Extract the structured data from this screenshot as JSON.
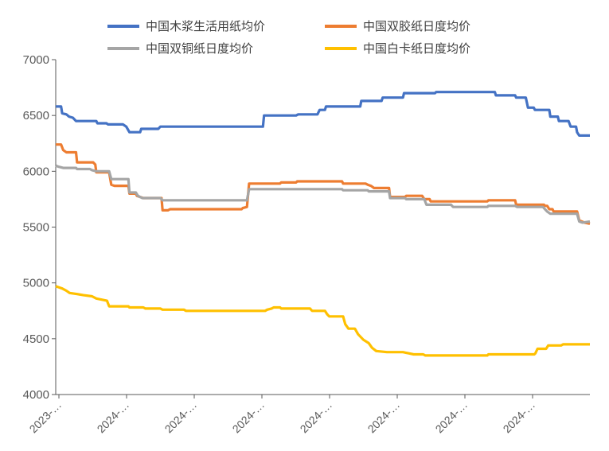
{
  "chart_data": {
    "type": "line",
    "title": "",
    "xlabel": "",
    "ylabel": "",
    "ylim": [
      4000,
      7000
    ],
    "yticks": [
      4000,
      4500,
      5000,
      5500,
      6000,
      6500,
      7000
    ],
    "xtick_labels": [
      "2023-…",
      "2024-…",
      "2024-…",
      "2024-…",
      "2024-…",
      "2024-…",
      "2024-…",
      "2024-…"
    ],
    "x_points": 100,
    "grid": false,
    "legend_position": "top",
    "series": [
      {
        "name": "中国木浆生活用纸均价",
        "color": "#4472C4",
        "values": [
          [
            0,
            6580
          ],
          [
            1,
            6580
          ],
          [
            1.2,
            6520
          ],
          [
            2,
            6510
          ],
          [
            2.5,
            6490
          ],
          [
            3.2,
            6480
          ],
          [
            3.8,
            6450
          ],
          [
            6,
            6450
          ],
          [
            7.6,
            6450
          ],
          [
            7.8,
            6430
          ],
          [
            9.5,
            6430
          ],
          [
            9.8,
            6420
          ],
          [
            12.6,
            6420
          ],
          [
            13.2,
            6400
          ],
          [
            13.8,
            6350
          ],
          [
            15.8,
            6350
          ],
          [
            16,
            6380
          ],
          [
            19.2,
            6380
          ],
          [
            19.6,
            6400
          ],
          [
            38.8,
            6400
          ],
          [
            39,
            6500
          ],
          [
            45,
            6500
          ],
          [
            45.4,
            6510
          ],
          [
            49,
            6510
          ],
          [
            49.4,
            6550
          ],
          [
            50.4,
            6550
          ],
          [
            50.6,
            6580
          ],
          [
            57,
            6580
          ],
          [
            57.2,
            6630
          ],
          [
            61,
            6630
          ],
          [
            61.2,
            6660
          ],
          [
            65,
            6660
          ],
          [
            65.2,
            6700
          ],
          [
            71,
            6700
          ],
          [
            71.2,
            6710
          ],
          [
            82.2,
            6710
          ],
          [
            82.4,
            6680
          ],
          [
            86,
            6680
          ],
          [
            86.2,
            6660
          ],
          [
            88,
            6660
          ],
          [
            88.4,
            6570
          ],
          [
            89.5,
            6570
          ],
          [
            89.7,
            6550
          ],
          [
            92.4,
            6550
          ],
          [
            92.6,
            6490
          ],
          [
            94,
            6490
          ],
          [
            94.2,
            6450
          ],
          [
            96,
            6450
          ],
          [
            96.4,
            6400
          ],
          [
            97.4,
            6400
          ],
          [
            97.6,
            6350
          ],
          [
            98,
            6320
          ],
          [
            100,
            6320
          ]
        ]
      },
      {
        "name": "中国双胶纸日度均价",
        "color": "#ED7D31",
        "values": [
          [
            0,
            6240
          ],
          [
            1,
            6240
          ],
          [
            1.4,
            6190
          ],
          [
            2,
            6170
          ],
          [
            3.8,
            6170
          ],
          [
            4,
            6080
          ],
          [
            7,
            6080
          ],
          [
            7.4,
            6060
          ],
          [
            7.6,
            5990
          ],
          [
            10,
            5990
          ],
          [
            10.4,
            5880
          ],
          [
            11,
            5870
          ],
          [
            13.6,
            5870
          ],
          [
            13.8,
            5800
          ],
          [
            15,
            5800
          ],
          [
            15.2,
            5780
          ],
          [
            16.4,
            5760
          ],
          [
            19.8,
            5760
          ],
          [
            20,
            5650
          ],
          [
            21,
            5650
          ],
          [
            21.4,
            5660
          ],
          [
            34.8,
            5660
          ],
          [
            35,
            5670
          ],
          [
            35.8,
            5680
          ],
          [
            36.2,
            5890
          ],
          [
            42,
            5890
          ],
          [
            42.2,
            5900
          ],
          [
            45,
            5900
          ],
          [
            45.2,
            5910
          ],
          [
            53.6,
            5910
          ],
          [
            53.8,
            5890
          ],
          [
            58,
            5890
          ],
          [
            58.4,
            5880
          ],
          [
            59,
            5870
          ],
          [
            59.6,
            5850
          ],
          [
            62.4,
            5850
          ],
          [
            62.6,
            5770
          ],
          [
            65.4,
            5770
          ],
          [
            65.6,
            5780
          ],
          [
            68.6,
            5780
          ],
          [
            69,
            5750
          ],
          [
            70,
            5750
          ],
          [
            70.2,
            5730
          ],
          [
            80.8,
            5730
          ],
          [
            81,
            5740
          ],
          [
            86,
            5740
          ],
          [
            86.2,
            5700
          ],
          [
            91.4,
            5700
          ],
          [
            91.6,
            5690
          ],
          [
            92,
            5690
          ],
          [
            92.4,
            5660
          ],
          [
            93,
            5660
          ],
          [
            93.2,
            5640
          ],
          [
            97.6,
            5640
          ],
          [
            98,
            5560
          ],
          [
            99,
            5540
          ],
          [
            100,
            5530
          ]
        ]
      },
      {
        "name": "中国双铜纸日度均价",
        "color": "#A5A5A5",
        "values": [
          [
            0,
            6050
          ],
          [
            0.6,
            6040
          ],
          [
            1.4,
            6030
          ],
          [
            3.8,
            6030
          ],
          [
            4,
            6020
          ],
          [
            6.4,
            6020
          ],
          [
            6.8,
            6010
          ],
          [
            7.6,
            6000
          ],
          [
            10,
            6000
          ],
          [
            10.4,
            5930
          ],
          [
            13.6,
            5930
          ],
          [
            13.8,
            5810
          ],
          [
            15,
            5810
          ],
          [
            15.4,
            5780
          ],
          [
            16.2,
            5760
          ],
          [
            19.6,
            5760
          ],
          [
            20,
            5740
          ],
          [
            35.8,
            5740
          ],
          [
            36.2,
            5840
          ],
          [
            53.6,
            5840
          ],
          [
            53.8,
            5830
          ],
          [
            58.4,
            5830
          ],
          [
            58.6,
            5820
          ],
          [
            62.4,
            5820
          ],
          [
            62.6,
            5760
          ],
          [
            65.4,
            5760
          ],
          [
            65.6,
            5750
          ],
          [
            69,
            5750
          ],
          [
            69.4,
            5700
          ],
          [
            74,
            5700
          ],
          [
            74.4,
            5680
          ],
          [
            80.8,
            5680
          ],
          [
            81,
            5690
          ],
          [
            86,
            5690
          ],
          [
            86.4,
            5680
          ],
          [
            91.2,
            5680
          ],
          [
            91.6,
            5660
          ],
          [
            92,
            5640
          ],
          [
            92.6,
            5620
          ],
          [
            97.6,
            5620
          ],
          [
            98,
            5550
          ],
          [
            98.6,
            5540
          ],
          [
            100,
            5550
          ]
        ]
      },
      {
        "name": "中国白卡纸日度均价",
        "color": "#FFC000",
        "values": [
          [
            0,
            4970
          ],
          [
            0.6,
            4960
          ],
          [
            1.2,
            4950
          ],
          [
            2,
            4930
          ],
          [
            2.6,
            4910
          ],
          [
            4,
            4900
          ],
          [
            5.2,
            4890
          ],
          [
            6.8,
            4880
          ],
          [
            7.6,
            4860
          ],
          [
            8.6,
            4850
          ],
          [
            9.6,
            4840
          ],
          [
            10,
            4790
          ],
          [
            13.6,
            4790
          ],
          [
            13.8,
            4780
          ],
          [
            16.4,
            4780
          ],
          [
            16.8,
            4770
          ],
          [
            19.6,
            4770
          ],
          [
            20,
            4760
          ],
          [
            24,
            4760
          ],
          [
            24.4,
            4750
          ],
          [
            39.2,
            4750
          ],
          [
            39.6,
            4760
          ],
          [
            40.4,
            4770
          ],
          [
            40.8,
            4780
          ],
          [
            42,
            4780
          ],
          [
            42.2,
            4770
          ],
          [
            47.6,
            4770
          ],
          [
            48,
            4750
          ],
          [
            50.4,
            4750
          ],
          [
            50.8,
            4720
          ],
          [
            51.2,
            4700
          ],
          [
            53.8,
            4700
          ],
          [
            54.2,
            4630
          ],
          [
            54.8,
            4590
          ],
          [
            56,
            4590
          ],
          [
            56.6,
            4540
          ],
          [
            57.6,
            4490
          ],
          [
            58.6,
            4460
          ],
          [
            59.2,
            4420
          ],
          [
            60,
            4390
          ],
          [
            62,
            4380
          ],
          [
            65,
            4380
          ],
          [
            66,
            4370
          ],
          [
            67,
            4360
          ],
          [
            68.8,
            4360
          ],
          [
            69.2,
            4350
          ],
          [
            80.8,
            4350
          ],
          [
            81,
            4360
          ],
          [
            89.6,
            4360
          ],
          [
            89.8,
            4370
          ],
          [
            90.2,
            4410
          ],
          [
            91.8,
            4410
          ],
          [
            92.2,
            4440
          ],
          [
            94.6,
            4440
          ],
          [
            95,
            4450
          ],
          [
            100,
            4450
          ]
        ]
      }
    ]
  }
}
